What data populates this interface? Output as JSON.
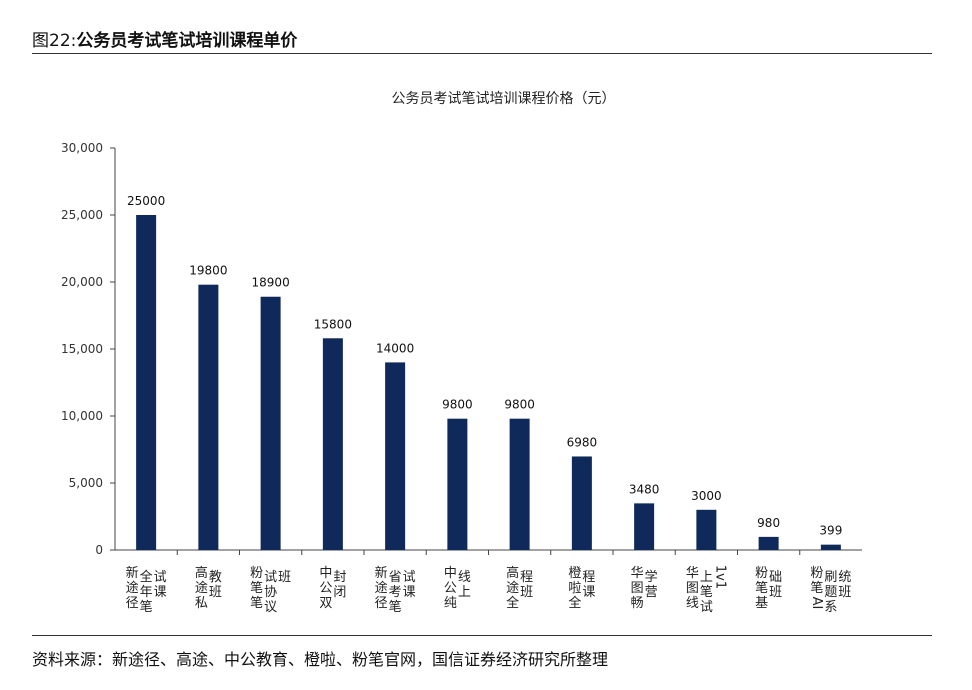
{
  "figure": {
    "number": "图22:",
    "title": "公务员考试笔试培训课程单价"
  },
  "source_note": "资料来源：新途径、高途、中公教育、橙啦、粉笔官网，国信证券经济研究所整理",
  "chart_data": {
    "type": "bar",
    "title": "公务员考试笔试培训课程价格（元）",
    "xlabel": "",
    "ylabel": "",
    "ylim": [
      0,
      30000
    ],
    "yticks": [
      0,
      5000,
      10000,
      15000,
      20000,
      25000,
      30000
    ],
    "ytick_labels": [
      "0",
      "5,000",
      "10,000",
      "15,000",
      "20,000",
      "25,000",
      "30,000"
    ],
    "grid": false,
    "legend": "none",
    "bar_color": "#0f2a5a",
    "categories": [
      "新途径全年笔试课",
      "高途私教班",
      "粉笔笔试协议班",
      "中公双封闭",
      "新途径省考笔试课",
      "中公纯线上",
      "高途全程班",
      "橙啦全程课",
      "华图畅学营",
      "华图线上笔试1v1",
      "粉笔基础班",
      "粉笔AI刷题系统班"
    ],
    "category_columns": [
      [
        [
          "新",
          "途",
          "径"
        ],
        [
          "全",
          "年",
          "笔"
        ],
        [
          "试",
          "课"
        ]
      ],
      [
        [
          "高",
          "途",
          "私"
        ],
        [
          "教",
          "班"
        ]
      ],
      [
        [
          "粉",
          "笔",
          "笔"
        ],
        [
          "试",
          "协",
          "议"
        ],
        [
          "班"
        ]
      ],
      [
        [
          "中",
          "公",
          "双"
        ],
        [
          "封",
          "闭"
        ]
      ],
      [
        [
          "新",
          "途",
          "径"
        ],
        [
          "省",
          "考",
          "笔"
        ],
        [
          "试",
          "课"
        ]
      ],
      [
        [
          "中",
          "公",
          "纯"
        ],
        [
          "线",
          "上"
        ]
      ],
      [
        [
          "高",
          "途",
          "全"
        ],
        [
          "程",
          "班"
        ]
      ],
      [
        [
          "橙",
          "啦",
          "全"
        ],
        [
          "程",
          "课"
        ]
      ],
      [
        [
          "华",
          "图",
          "畅"
        ],
        [
          "学",
          "营"
        ]
      ],
      [
        [
          "华",
          "图",
          "线"
        ],
        [
          "上",
          "笔",
          "试"
        ],
        [
          "1v1"
        ]
      ],
      [
        [
          "粉",
          "笔",
          "基"
        ],
        [
          "础",
          "班"
        ]
      ],
      [
        [
          "粉",
          "笔",
          "AI"
        ],
        [
          "刷",
          "题",
          "系"
        ],
        [
          "统",
          "班"
        ]
      ]
    ],
    "values": [
      25000,
      19800,
      18900,
      15800,
      14000,
      9800,
      9800,
      6980,
      3480,
      3000,
      980,
      399
    ],
    "value_labels": [
      "25000",
      "19800",
      "18900",
      "15800",
      "14000",
      "9800",
      "9800",
      "6980",
      "3480",
      "3000",
      "980",
      "399"
    ]
  }
}
